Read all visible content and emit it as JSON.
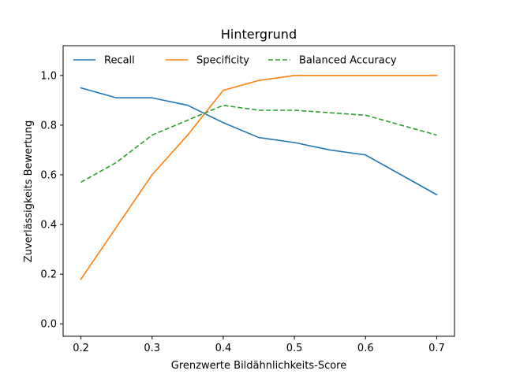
{
  "chart_data": {
    "type": "line",
    "title": "Hintergrund",
    "xlabel": "Grenzwerte Bildähnlichkeits-Score",
    "ylabel": "Zuverlässigkeits Bewertung",
    "xlim": [
      0.175,
      0.725
    ],
    "ylim": [
      -0.05,
      1.12
    ],
    "xticks": [
      0.2,
      0.3,
      0.4,
      0.5,
      0.6,
      0.7
    ],
    "xtick_labels": [
      "0.2",
      "0.3",
      "0.4",
      "0.5",
      "0.6",
      "0.7"
    ],
    "yticks": [
      0.0,
      0.2,
      0.4,
      0.6,
      0.8,
      1.0
    ],
    "ytick_labels": [
      "0.0",
      "0.2",
      "0.4",
      "0.6",
      "0.8",
      "1.0"
    ],
    "grid": false,
    "legend_position": "top",
    "x": [
      0.2,
      0.25,
      0.3,
      0.35,
      0.4,
      0.45,
      0.5,
      0.55,
      0.6,
      0.65,
      0.7
    ],
    "series": [
      {
        "name": "Recall",
        "color": "#1f77b4",
        "dash": "solid",
        "values": [
          0.95,
          0.91,
          0.91,
          0.88,
          0.81,
          0.75,
          0.73,
          0.7,
          0.68,
          0.6,
          0.52
        ]
      },
      {
        "name": "Specificity",
        "color": "#ff7f0e",
        "dash": "solid",
        "values": [
          0.18,
          0.39,
          0.6,
          0.76,
          0.94,
          0.98,
          1.0,
          1.0,
          1.0,
          1.0,
          1.0
        ]
      },
      {
        "name": "Balanced Accuracy",
        "color": "#2ca02c",
        "dash": "dashed",
        "values": [
          0.57,
          0.65,
          0.76,
          0.82,
          0.88,
          0.86,
          0.86,
          0.85,
          0.84,
          0.8,
          0.76
        ]
      }
    ]
  }
}
